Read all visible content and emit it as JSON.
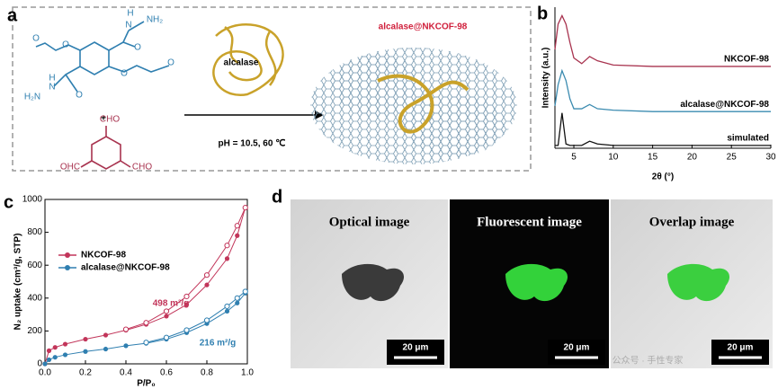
{
  "panel_labels": [
    "a",
    "b",
    "c",
    "d"
  ],
  "scheme": {
    "product": "alcalase@NKCOF-98",
    "enzyme": "alcalase",
    "conditions": "pH = 10.5, 60 ℃",
    "plus": "+",
    "atoms": [
      "H",
      "N",
      "NH₂",
      "O",
      "O",
      "O",
      "O",
      "O",
      "H₂N",
      "N",
      "H",
      "O",
      "CHO",
      "OHC",
      "CHO"
    ]
  },
  "chart_data": [
    {
      "type": "line",
      "xlabel": "2θ (°)",
      "ylabel": "Intensity (a.u.)",
      "x": [
        2.6,
        3,
        3.5,
        4,
        4.5,
        5,
        6,
        7,
        8,
        10,
        15,
        20,
        25,
        30
      ],
      "xlim": [
        2.6,
        30
      ],
      "xticks": [
        5,
        10,
        15,
        20,
        25,
        30
      ],
      "ylim": [
        0,
        100
      ],
      "series": [
        {
          "name": "NKCOF-98",
          "color": "#a8334f",
          "values": [
            70,
            88,
            94,
            88,
            75,
            64,
            60,
            65,
            62,
            59,
            58,
            58,
            58,
            58
          ]
        },
        {
          "name": "alcalase@NKCOF-98",
          "color": "#3b8bb0",
          "values": [
            30,
            45,
            55,
            48,
            35,
            28,
            28,
            31,
            28,
            27,
            26,
            26,
            26,
            26
          ]
        },
        {
          "name": "simulated",
          "color": "#111111",
          "values": [
            2,
            2,
            25,
            3,
            2,
            2,
            2,
            5,
            3,
            2,
            2,
            2,
            2,
            2
          ]
        }
      ]
    },
    {
      "type": "scatter",
      "xlabel": "P/P₀",
      "ylabel": "N₂ uptake (cm³/g, STP)",
      "xlim": [
        0,
        1
      ],
      "ylim": [
        0,
        1000
      ],
      "xticks": [
        {
          "value": 0,
          "label": "0.0"
        },
        0.2,
        0.4,
        0.6,
        0.8,
        {
          "value": 1,
          "label": "1.0"
        }
      ],
      "yticks": [
        0,
        200,
        400,
        600,
        800,
        1000
      ],
      "legend": "upper left",
      "series": [
        {
          "name": "NKCOF-98",
          "color": "#c2355a",
          "x": [
            0,
            0.02,
            0.05,
            0.1,
            0.2,
            0.3,
            0.4,
            0.5,
            0.6,
            0.7,
            0.8,
            0.9,
            0.95,
            0.99
          ],
          "values": [
            0,
            80,
            100,
            120,
            150,
            175,
            205,
            240,
            290,
            360,
            480,
            640,
            780,
            950
          ],
          "desorption_x": [
            0.99,
            0.95,
            0.9,
            0.8,
            0.7,
            0.6,
            0.5,
            0.4
          ],
          "desorption_values": [
            950,
            840,
            720,
            540,
            410,
            320,
            250,
            210
          ]
        },
        {
          "name": "alcalase@NKCOF-98",
          "color": "#2f7fb0",
          "x": [
            0,
            0.02,
            0.05,
            0.1,
            0.2,
            0.3,
            0.4,
            0.5,
            0.6,
            0.7,
            0.8,
            0.9,
            0.95,
            0.99
          ],
          "values": [
            0,
            25,
            40,
            55,
            75,
            90,
            110,
            125,
            150,
            190,
            245,
            320,
            370,
            430
          ],
          "desorption_x": [
            0.99,
            0.95,
            0.9,
            0.8,
            0.7,
            0.6,
            0.5
          ],
          "desorption_values": [
            440,
            400,
            350,
            265,
            205,
            160,
            130
          ]
        }
      ],
      "annotations": [
        "498 m²/g",
        "216 m²/g"
      ]
    }
  ],
  "micrographs": {
    "panels": [
      {
        "title": "Optical image",
        "scale_bar": "20 μm"
      },
      {
        "title": "Fluorescent image",
        "scale_bar": "20 μm"
      },
      {
        "title": "Overlap image",
        "scale_bar": "20 μm"
      }
    ],
    "watermark": "公众号 · 手性专家"
  }
}
